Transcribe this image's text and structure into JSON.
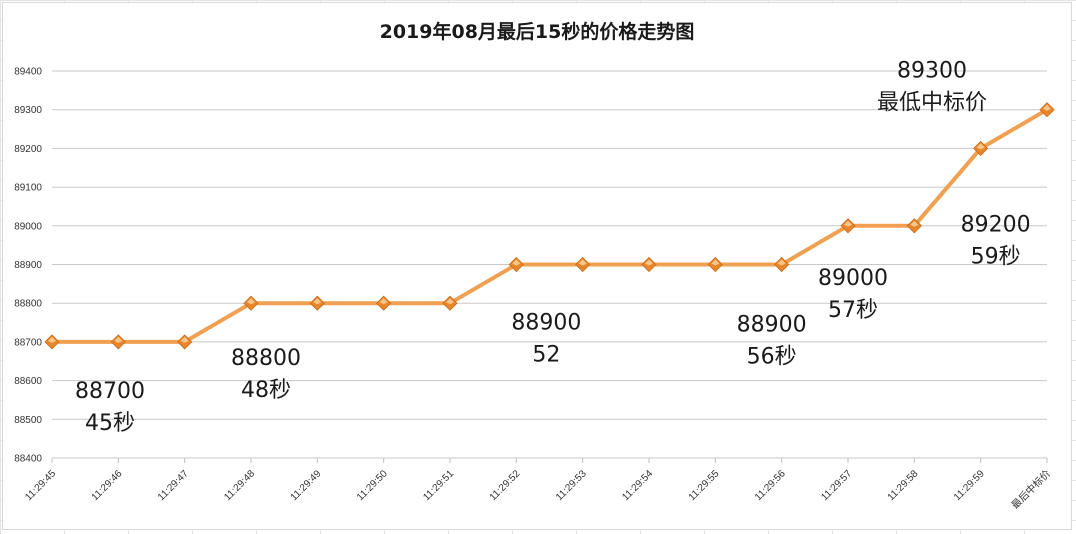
{
  "chart_data": {
    "type": "line",
    "title": "2019年08月最后15秒的价格走势图",
    "categories": [
      "11:29:45",
      "11:29:46",
      "11:29:47",
      "11:29:48",
      "11:29:49",
      "11:29:50",
      "11:29:51",
      "11:29:52",
      "11:29:53",
      "11:29:54",
      "11:29:55",
      "11:29:56",
      "11:29:57",
      "11:29:58",
      "11:29:59",
      "最后中标价"
    ],
    "series": [
      {
        "values": [
          88700,
          88700,
          88700,
          88800,
          88800,
          88800,
          88800,
          88900,
          88900,
          88900,
          88900,
          88900,
          89000,
          89000,
          89200,
          89300
        ]
      }
    ],
    "ylim": [
      88400,
      89400
    ],
    "yticks": [
      88400,
      88500,
      88600,
      88700,
      88800,
      88900,
      89000,
      89100,
      89200,
      89300,
      89400
    ],
    "grid": true,
    "legend": "none",
    "colors": {
      "line": "#f0a050",
      "marker_fill": "#e8862c",
      "marker_highlight": "#fbd19a",
      "grid": "#c8c8c8"
    },
    "annotations": [
      {
        "point": 0,
        "lines": [
          "88700",
          "45秒"
        ]
      },
      {
        "point": 3,
        "lines": [
          "88800",
          "48秒"
        ]
      },
      {
        "point": 7,
        "lines": [
          "88900",
          "52"
        ]
      },
      {
        "point": 11,
        "lines": [
          "88900",
          "56秒"
        ]
      },
      {
        "point": 12,
        "lines": [
          "89000",
          "57秒"
        ]
      },
      {
        "point": 14,
        "lines": [
          "89200",
          "59秒"
        ]
      },
      {
        "point": 15,
        "lines": [
          "89300",
          "最低中标价"
        ]
      }
    ]
  }
}
